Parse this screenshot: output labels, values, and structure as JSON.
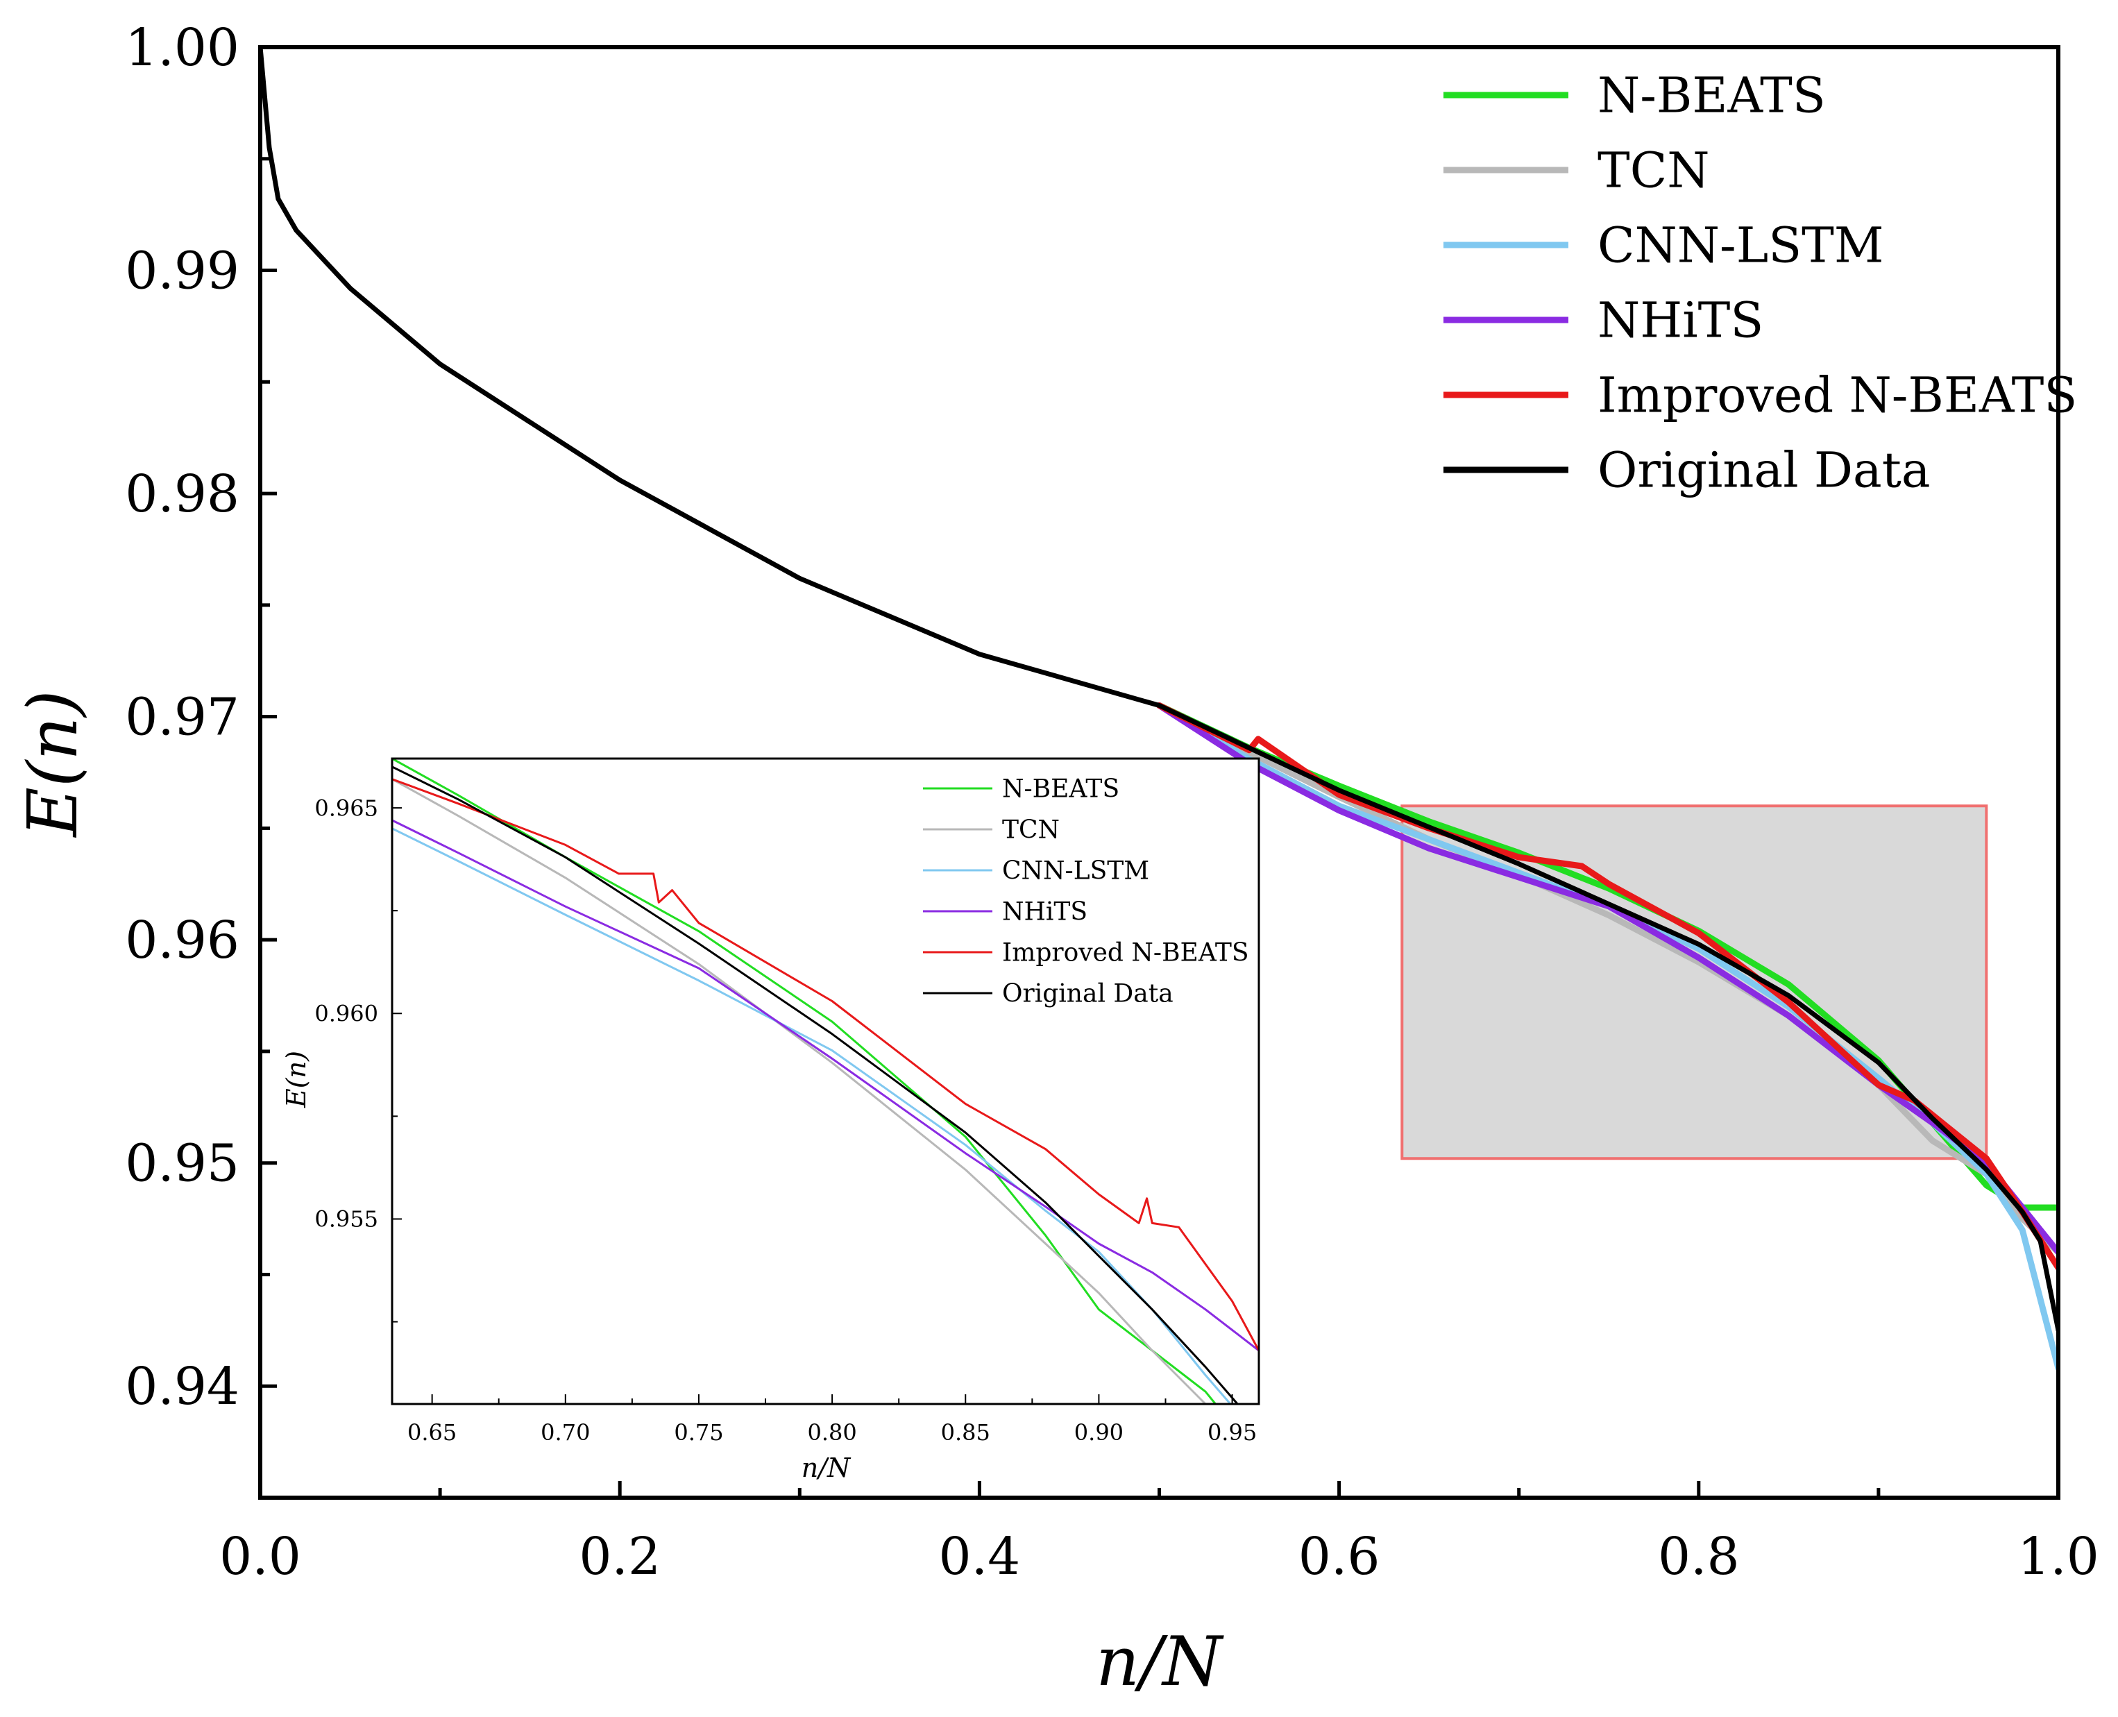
{
  "chart_data": [
    {
      "type": "line",
      "role": "main",
      "xlabel": "n/N",
      "ylabel": "E(n)",
      "xlim": [
        0.0,
        1.0
      ],
      "ylim": [
        0.935,
        1.0
      ],
      "xticks": [
        0.0,
        0.2,
        0.4,
        0.6,
        0.8,
        1.0
      ],
      "xtick_labels": [
        "0.0",
        "0.2",
        "0.4",
        "0.6",
        "0.8",
        "1.0"
      ],
      "yticks": [
        0.94,
        0.95,
        0.96,
        0.97,
        0.98,
        0.99,
        1.0
      ],
      "ytick_labels": [
        "0.94",
        "0.95",
        "0.96",
        "0.97",
        "0.98",
        "0.99",
        "1.00"
      ],
      "legend_position": "top-right",
      "series": [
        {
          "name": "N-BEATS",
          "color": "#22dd22",
          "x": [
            0.5,
            0.55,
            0.6,
            0.65,
            0.7,
            0.75,
            0.8,
            0.85,
            0.9,
            0.93,
            0.96,
            0.98,
            1.0
          ],
          "y": [
            0.9705,
            0.9686,
            0.9669,
            0.9653,
            0.9639,
            0.9623,
            0.9604,
            0.958,
            0.9546,
            0.9518,
            0.949,
            0.948,
            0.948
          ]
        },
        {
          "name": "TCN",
          "color": "#b8b8b8",
          "x": [
            0.5,
            0.55,
            0.6,
            0.65,
            0.7,
            0.75,
            0.8,
            0.85,
            0.9,
            0.93,
            0.96,
            0.98,
            1.0
          ],
          "y": [
            0.9705,
            0.9684,
            0.9664,
            0.9645,
            0.9629,
            0.9611,
            0.959,
            0.9566,
            0.9535,
            0.951,
            0.9495,
            0.9475,
            0.946
          ]
        },
        {
          "name": "CNN-LSTM",
          "color": "#80c8f0",
          "x": [
            0.5,
            0.55,
            0.6,
            0.65,
            0.7,
            0.75,
            0.8,
            0.85,
            0.9,
            0.93,
            0.96,
            0.98,
            1.0
          ],
          "y": [
            0.9705,
            0.9681,
            0.966,
            0.9645,
            0.963,
            0.9615,
            0.9596,
            0.957,
            0.9538,
            0.9518,
            0.9495,
            0.947,
            0.9408
          ]
        },
        {
          "name": "NHiTS",
          "color": "#8a2be2",
          "x": [
            0.5,
            0.55,
            0.6,
            0.65,
            0.7,
            0.75,
            0.8,
            0.85,
            0.9,
            0.93,
            0.96,
            0.98,
            1.0
          ],
          "y": [
            0.9705,
            0.9679,
            0.9658,
            0.9641,
            0.9628,
            0.9615,
            0.9592,
            0.9566,
            0.9535,
            0.9518,
            0.95,
            0.948,
            0.946
          ]
        },
        {
          "name": "Improved N-BEATS",
          "color": "#e8191a",
          "x": [
            0.5,
            0.55,
            0.555,
            0.6,
            0.65,
            0.7,
            0.735,
            0.75,
            0.8,
            0.85,
            0.9,
            0.92,
            0.96,
            0.98,
            1.0
          ],
          "y": [
            0.9705,
            0.9685,
            0.969,
            0.9665,
            0.965,
            0.9637,
            0.9633,
            0.9625,
            0.9603,
            0.9572,
            0.9535,
            0.9528,
            0.9502,
            0.9478,
            0.9453
          ]
        },
        {
          "name": "Original Data",
          "color": "#000000",
          "x": [
            0.0,
            0.005,
            0.01,
            0.02,
            0.05,
            0.1,
            0.2,
            0.3,
            0.4,
            0.5,
            0.6,
            0.7,
            0.8,
            0.85,
            0.9,
            0.93,
            0.96,
            0.98,
            0.99,
            1.0
          ],
          "y": [
            1.0,
            0.9955,
            0.9932,
            0.9918,
            0.9892,
            0.9858,
            0.9806,
            0.9762,
            0.9728,
            0.9705,
            0.9667,
            0.9634,
            0.9598,
            0.9575,
            0.9545,
            0.952,
            0.9497,
            0.9478,
            0.9465,
            0.9425
          ]
        }
      ],
      "highlight_region": {
        "x": [
          0.635,
          0.96
        ],
        "y": [
          0.9502,
          0.966
        ],
        "fill": "#d9d9d9",
        "edge": "#f07070"
      }
    },
    {
      "type": "line",
      "role": "inset",
      "xlabel": "n/N",
      "ylabel": "E(n)",
      "xlim": [
        0.635,
        0.96
      ],
      "ylim": [
        0.9505,
        0.9662
      ],
      "xticks": [
        0.65,
        0.7,
        0.75,
        0.8,
        0.85,
        0.9,
        0.95
      ],
      "xtick_labels": [
        "0.65",
        "0.70",
        "0.75",
        "0.80",
        "0.85",
        "0.90",
        "0.95"
      ],
      "yticks": [
        0.955,
        0.96,
        0.965
      ],
      "ytick_labels": [
        "0.955",
        "0.960",
        "0.965"
      ],
      "legend_position": "top-right",
      "series": [
        {
          "name": "N-BEATS",
          "color": "#22dd22",
          "x": [
            0.635,
            0.66,
            0.7,
            0.75,
            0.8,
            0.85,
            0.88,
            0.9,
            0.92,
            0.94,
            0.96
          ],
          "y": [
            0.9662,
            0.9653,
            0.9638,
            0.962,
            0.9598,
            0.957,
            0.9546,
            0.9528,
            0.9518,
            0.9508,
            0.9492
          ]
        },
        {
          "name": "TCN",
          "color": "#b8b8b8",
          "x": [
            0.635,
            0.66,
            0.7,
            0.75,
            0.8,
            0.85,
            0.88,
            0.9,
            0.92,
            0.94,
            0.96
          ],
          "y": [
            0.9657,
            0.9648,
            0.9633,
            0.9612,
            0.9588,
            0.9562,
            0.9544,
            0.9532,
            0.9518,
            0.9505,
            0.9492
          ]
        },
        {
          "name": "CNN-LSTM",
          "color": "#80c8f0",
          "x": [
            0.635,
            0.66,
            0.7,
            0.75,
            0.8,
            0.85,
            0.88,
            0.9,
            0.92,
            0.94,
            0.96
          ],
          "y": [
            0.9645,
            0.9637,
            0.9624,
            0.9608,
            0.9591,
            0.9568,
            0.9552,
            0.9542,
            0.9528,
            0.9512,
            0.9497
          ]
        },
        {
          "name": "NHiTS",
          "color": "#8a2be2",
          "x": [
            0.635,
            0.66,
            0.7,
            0.75,
            0.8,
            0.85,
            0.88,
            0.9,
            0.92,
            0.94,
            0.96
          ],
          "y": [
            0.9647,
            0.9639,
            0.9626,
            0.9611,
            0.9589,
            0.9566,
            0.9553,
            0.9544,
            0.9537,
            0.9528,
            0.9518
          ]
        },
        {
          "name": "Improved N-BEATS",
          "color": "#e8191a",
          "x": [
            0.635,
            0.66,
            0.7,
            0.72,
            0.733,
            0.735,
            0.74,
            0.75,
            0.8,
            0.85,
            0.88,
            0.9,
            0.915,
            0.918,
            0.92,
            0.93,
            0.95,
            0.96
          ],
          "y": [
            0.9657,
            0.9651,
            0.9641,
            0.9634,
            0.9634,
            0.9627,
            0.963,
            0.9622,
            0.9603,
            0.9578,
            0.9567,
            0.9556,
            0.9549,
            0.9555,
            0.9549,
            0.9548,
            0.953,
            0.9518
          ]
        },
        {
          "name": "Original Data",
          "color": "#000000",
          "x": [
            0.635,
            0.66,
            0.7,
            0.75,
            0.8,
            0.85,
            0.88,
            0.9,
            0.92,
            0.94,
            0.96
          ],
          "y": [
            0.966,
            0.9652,
            0.9638,
            0.9617,
            0.9595,
            0.9571,
            0.9554,
            0.9541,
            0.9528,
            0.9514,
            0.9499
          ]
        }
      ]
    }
  ]
}
